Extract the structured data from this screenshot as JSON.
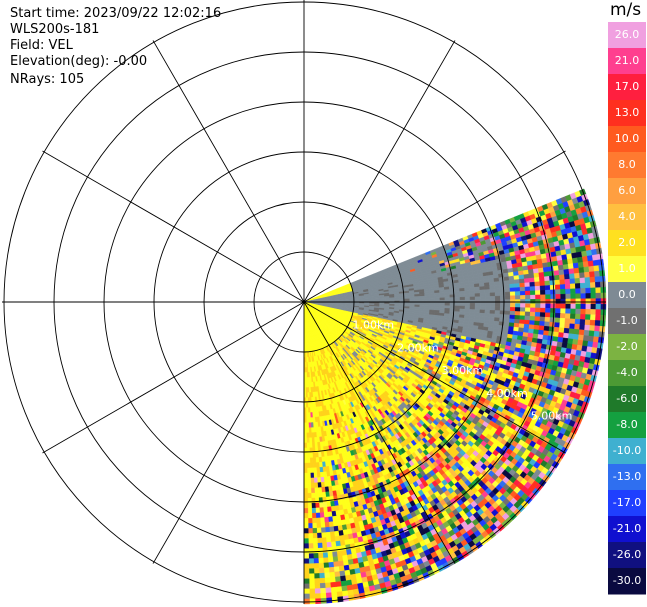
{
  "info": {
    "start_time": "Start time: 2023/09/22 12:02:16",
    "instrument": "WLS200s-181",
    "field": "Field: VEL",
    "elevation": "Elevation(deg): -0.00",
    "nrays": "NRays: 105"
  },
  "colorbar": {
    "unit": "m/s",
    "ticks": [
      "26.0",
      "21.0",
      "17.0",
      "13.0",
      "10.0",
      "8.0",
      "6.0",
      "4.0",
      "2.0",
      "1.0",
      "0.0",
      "-1.0",
      "-2.0",
      "-4.0",
      "-6.0",
      "-8.0",
      "-10.0",
      "-13.0",
      "-17.0",
      "-21.0",
      "-26.0",
      "-30.0"
    ],
    "colors": [
      "#f0a0e0",
      "#ff3f8f",
      "#ff1f3f",
      "#ff2f1f",
      "#ff5a1f",
      "#ff7a30",
      "#ff9f40",
      "#ffc040",
      "#ffe020",
      "#ffff40",
      "#7e8a94",
      "#707070",
      "#7cb342",
      "#4c9a34",
      "#1f7a2a",
      "#14a040",
      "#3fb0d0",
      "#2f6ff0",
      "#1f3fff",
      "#1010d0",
      "#101080",
      "#0a0a40"
    ]
  },
  "chart_data": {
    "type": "heatmap",
    "projection": "polar PPI",
    "field": "VEL",
    "units": "m/s",
    "color_range": [
      -30.0,
      26.0
    ],
    "sector_azimuth_deg": [
      68,
      180
    ],
    "range_rings": [
      "1.00km",
      "2.00km",
      "3.00km",
      "4.00km",
      "5.00km"
    ],
    "range_ring_spacing_km": 1.0,
    "spokes_every_deg": 30,
    "dominant_values": [
      {
        "region": "near range",
        "value": 4.0
      },
      {
        "region": "azimuth ~90 deg",
        "value": 0.0
      },
      {
        "region": "far range",
        "value": "scattered -30.0 to 26.0"
      }
    ]
  }
}
